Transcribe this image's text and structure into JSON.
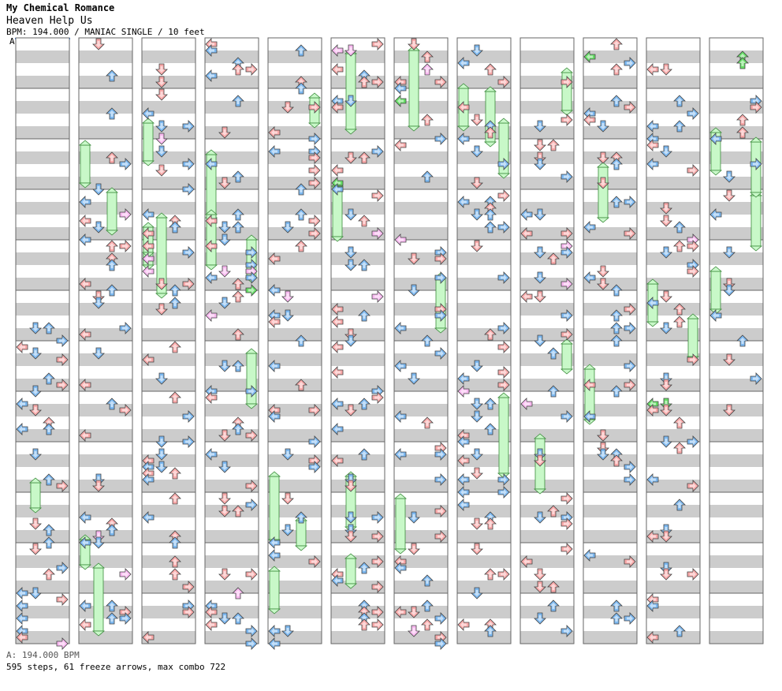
{
  "header": {
    "artist": "My Chemical Romance",
    "title": "Heaven Help Us",
    "info": "BPM: 194.000 / MANIAC SINGLE / 10 feet"
  },
  "chart_meta": {
    "section_marker": "A",
    "columns": 12,
    "measures_per_column": 12,
    "lanes": [
      "left",
      "down",
      "up",
      "right"
    ]
  },
  "colors": {
    "note_quarter": "#f8a8a8",
    "note_eighth": "#7cb8f0",
    "note_sixteenth": "#f8b8f0",
    "note_other": "#66dd66",
    "freeze": "#c8f8c8",
    "stripe": "#cccccc"
  },
  "footer": {
    "bpm_line": "A: 194.000 BPM",
    "stats": "595 steps, 61 freeze arrows, max combo 722"
  }
}
